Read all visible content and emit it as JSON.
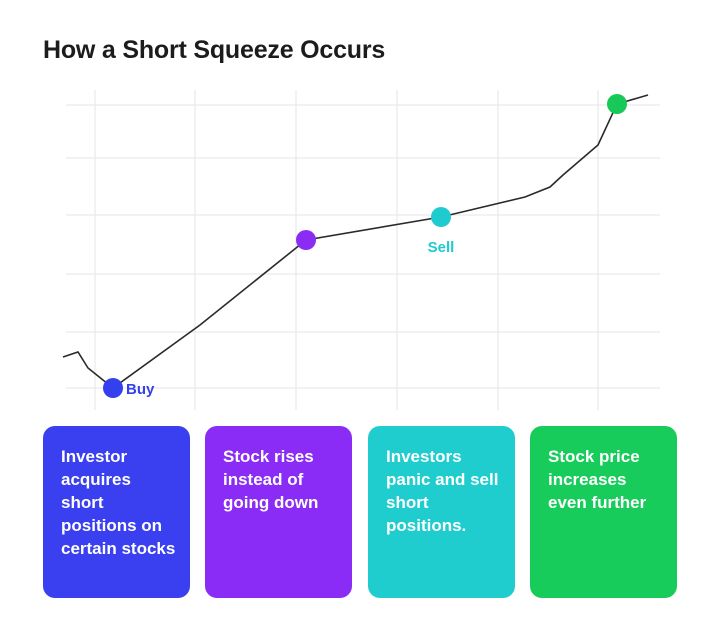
{
  "title": "How a Short Squeeze Occurs",
  "markers": [
    {
      "name": "buy",
      "label": "Buy",
      "color": "#3440ee"
    },
    {
      "name": "rise",
      "label": "",
      "color": "#8a2cf4"
    },
    {
      "name": "sell",
      "label": "Sell",
      "color": "#1fcbcf"
    },
    {
      "name": "further",
      "label": "",
      "color": "#18c95a"
    }
  ],
  "cards": [
    {
      "text": "Investor acquires short positions on certain stocks",
      "color": "#3a3ff0"
    },
    {
      "text": "Stock rises instead of going down",
      "color": "#8a2cf5"
    },
    {
      "text": "Investors panic and sell short positions.",
      "color": "#1fcdcf"
    },
    {
      "text": "Stock price increases even further",
      "color": "#17cc5a"
    }
  ]
}
